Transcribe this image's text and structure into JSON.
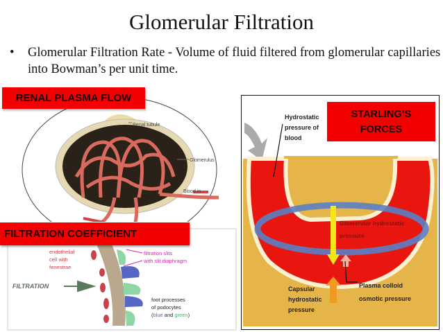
{
  "title": "Glomerular Filtration",
  "bullet": {
    "marker": "•",
    "text": "Glomerular Filtration Rate - Volume of fluid filtered from glomerular capillaries into Bowman’s per unit time."
  },
  "labels": {
    "renal_plasma_flow": "RENAL PLASMA FLOW",
    "filtration_coefficient": "FILTRATION COEFFICIENT",
    "starlings_forces": "STARLING’S FORCES"
  },
  "glomerulus_figure": {
    "renal_tubule": "Renal tubule",
    "glomerulus": "Glomerulus",
    "blood_in": "Blood in"
  },
  "filtration_figure": {
    "endothelial": [
      "endothelial",
      "cell with",
      "fenestrae"
    ],
    "filtration_slits": [
      "filtration slits",
      "with slit diaphragm"
    ],
    "filtration": "FILTRATION",
    "foot_processes": [
      "foot processes",
      "of podocytes"
    ],
    "blue_word": "blue",
    "and_word": "and",
    "green_word": "green",
    "open_paren": "(",
    "close_paren": ")"
  },
  "starling_figure": {
    "hydrostatic_blood": [
      "Hydrostatic",
      "pressure of",
      "blood"
    ],
    "glomerular_hydrostatic": [
      "Glomerular hydrostatic",
      "pressure"
    ],
    "capsular": [
      "Capsular",
      "hydrostatic",
      "pressure"
    ],
    "plasma_colloid": [
      "Plasma colloid",
      "osmotic pressure"
    ]
  },
  "colors": {
    "label_red": "#f50000",
    "capillary_red": "#e8160e",
    "capsule_yellow": "#e6b54a",
    "highlight_ring": "#5b7fc4"
  }
}
